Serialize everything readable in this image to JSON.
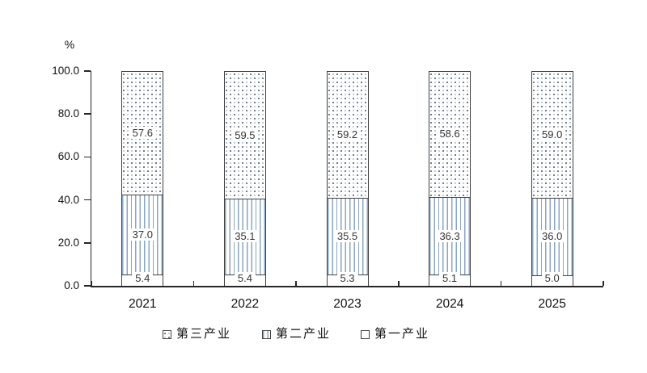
{
  "chart_data": {
    "type": "bar",
    "stacked": true,
    "title": "",
    "ylabel": "%",
    "xlabel": "",
    "ylim": [
      0,
      100
    ],
    "grid": false,
    "categories": [
      "2021",
      "2022",
      "2023",
      "2024",
      "2025"
    ],
    "series": [
      {
        "id": "primary",
        "name": "第一产业",
        "pattern": "plain",
        "values": [
          5.4,
          5.4,
          5.3,
          5.1,
          5.0
        ]
      },
      {
        "id": "secondary",
        "name": "第二产业",
        "pattern": "stripes",
        "values": [
          37.0,
          35.1,
          35.5,
          36.3,
          36.0
        ]
      },
      {
        "id": "tertiary",
        "name": "第三产业",
        "pattern": "dots",
        "values": [
          57.6,
          59.5,
          59.2,
          58.6,
          59.0
        ]
      }
    ],
    "yticks": [
      "0.0",
      "20.0",
      "40.0",
      "60.0",
      "80.0",
      "100.0"
    ],
    "legend": {
      "position": "bottom",
      "items": [
        {
          "id": "tertiary",
          "label": "第三产业",
          "pattern": "dots"
        },
        {
          "id": "secondary",
          "label": "第二产业",
          "pattern": "stripes"
        },
        {
          "id": "primary",
          "label": "第一产业",
          "pattern": "plain"
        }
      ]
    },
    "colors": {
      "stripe": "#8aa6c1",
      "dot_dark": "#55626e",
      "dot_light": "#b3c3d3",
      "bar_border": "#404040",
      "axis": "#262626",
      "value_label_text": "#333333"
    }
  }
}
